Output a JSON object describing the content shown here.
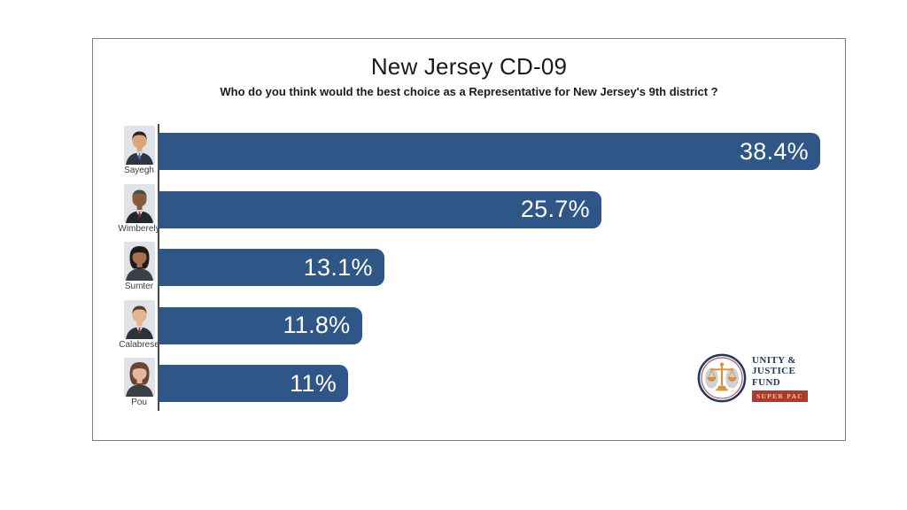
{
  "chart_data": {
    "type": "bar",
    "orientation": "horizontal",
    "title": "New Jersey CD-09",
    "subtitle": "Who do you think would the best choice as a Representative for New Jersey's 9th district ?",
    "categories": [
      "Sayegh",
      "Wimberely",
      "Sumter",
      "Calabrese",
      "Pou"
    ],
    "values": [
      38.4,
      25.7,
      13.1,
      11.8,
      11
    ],
    "value_labels": [
      "38.4%",
      "25.7%",
      "13.1%",
      "11.8%",
      "11%"
    ],
    "xlabel": "",
    "ylabel": "",
    "xlim": [
      0,
      40
    ],
    "grid": false,
    "legend": false,
    "value_label_position": "inside-end",
    "bar_color": "#2e5687"
  },
  "avatars": [
    {
      "style": "male",
      "skin": "#d8a57c",
      "hair": "#2b2420",
      "suit": "#2f3742",
      "shirt": "#f4f5f6",
      "tie": "#4a6ea9",
      "bg": "#dfe3e8"
    },
    {
      "style": "male",
      "skin": "#8a5a3e",
      "hair": "#4a4a4a",
      "suit": "#23272e",
      "shirt": "#f4f5f6",
      "tie": "#7a2d35",
      "bg": "#dfe3e8"
    },
    {
      "style": "female",
      "skin": "#a97050",
      "hair": "#201a18",
      "suit": "#3a3f4a",
      "shirt": "#f4f5f6",
      "tie": "none",
      "bg": "#dfe3e8"
    },
    {
      "style": "male",
      "skin": "#e3b48e",
      "hair": "#51402c",
      "suit": "#2c323c",
      "shirt": "#f4f5f6",
      "tie": "#8e3038",
      "bg": "#dfe3e8"
    },
    {
      "style": "female",
      "skin": "#e4b79c",
      "hair": "#6d4434",
      "suit": "#3a3f44",
      "shirt": "#f4f5f6",
      "tie": "none",
      "bg": "#dfe3e8"
    }
  ],
  "logo": {
    "line1": "UNITY &",
    "line2": "JUSTICE",
    "line3": "FUND",
    "badge": "SUPER PAC"
  },
  "colors": {
    "bar": "#2e5687",
    "axis": "#4a4a4a",
    "card_border": "#708196",
    "logo_navy": "#20395c",
    "logo_red": "#b0392f",
    "logo_gold": "#dd8f33",
    "logo_badge_text": "#eecd9a",
    "logo_ring_red": "#b5534a",
    "logo_leaf": "#ccd2d8"
  }
}
